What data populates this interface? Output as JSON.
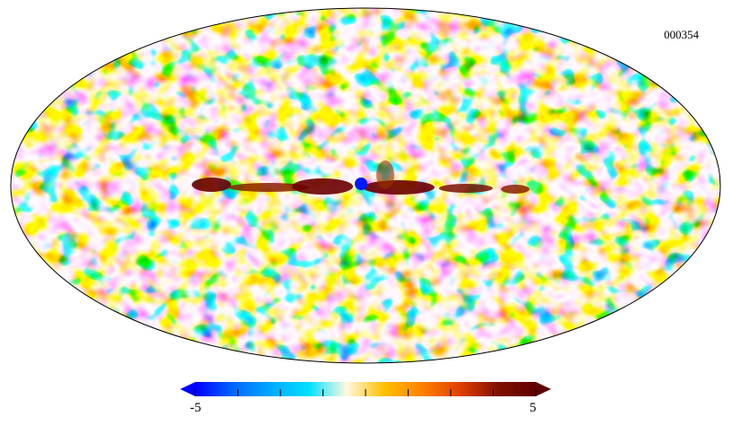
{
  "map": {
    "id_label": "000354",
    "projection": "mollweide",
    "features": [
      "galactic-plane-band",
      "isotropic-noise-field"
    ]
  },
  "colorbar": {
    "min_label": "-5",
    "max_label": "5",
    "min": -5,
    "max": 5,
    "extend": "both",
    "tick_values": [
      -5,
      -3.75,
      -2.5,
      -1.25,
      0,
      1.25,
      2.5,
      3.75,
      5
    ],
    "colors": [
      "#0000ff",
      "#0066ff",
      "#00aaff",
      "#00e0ff",
      "#fff8e0",
      "#ffc000",
      "#ff8000",
      "#e04000",
      "#801000",
      "#600000"
    ]
  }
}
